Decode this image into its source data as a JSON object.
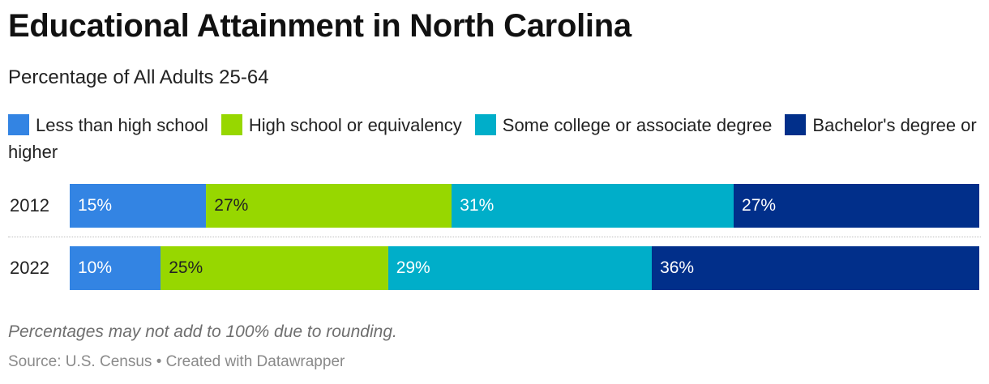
{
  "chart_data": {
    "type": "bar",
    "orientation": "horizontal",
    "stacked": true,
    "title": "Educational Attainment in North Carolina",
    "subtitle": "Percentage of All Adults 25-64",
    "categories": [
      "2012",
      "2022"
    ],
    "series": [
      {
        "name": "Less than high school",
        "color": "#3384e3",
        "values": [
          15,
          10
        ],
        "labels": [
          "15%",
          "10%"
        ]
      },
      {
        "name": "High school or equivalency",
        "color": "#97d700",
        "values": [
          27,
          25
        ],
        "labels": [
          "27%",
          "25%"
        ]
      },
      {
        "name": "Some college or associate degree",
        "color": "#00aec9",
        "values": [
          31,
          29
        ],
        "labels": [
          "31%",
          "29%"
        ]
      },
      {
        "name": "Bachelor's degree or higher",
        "color": "#012f8a",
        "values": [
          27,
          36
        ],
        "labels": [
          "27%",
          "36%"
        ]
      }
    ],
    "label_colors": [
      "#ffffff",
      "#222222",
      "#ffffff",
      "#ffffff"
    ],
    "legend_position": "top",
    "note": "Percentages may not add to 100% due to rounding.",
    "source": "Source: U.S. Census • Created with Datawrapper"
  }
}
